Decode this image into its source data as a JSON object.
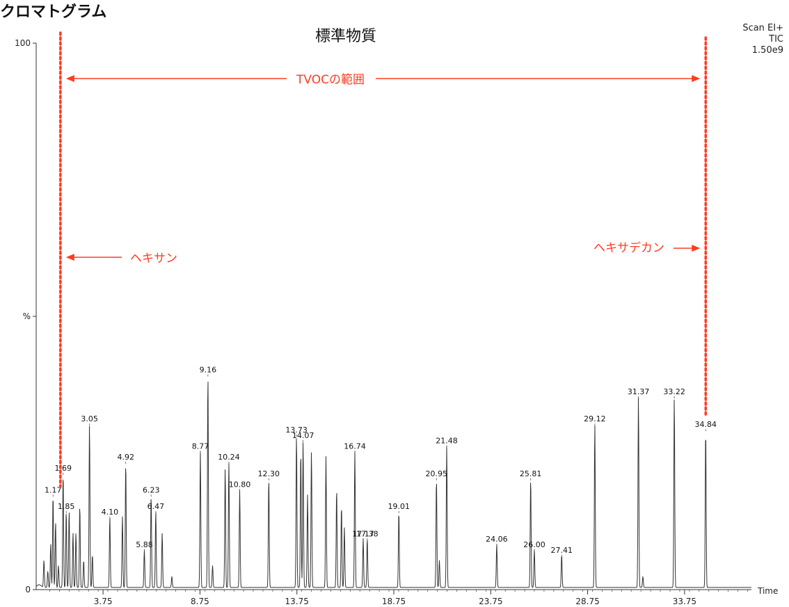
{
  "page_title": "クロマトグラム",
  "chart_data": {
    "type": "line",
    "title": "標準物質",
    "scan_info": [
      "Scan EI+",
      "TIC",
      "1.50e9"
    ],
    "ylabel": "%",
    "xlabel": "Time",
    "ylim": [
      0,
      100
    ],
    "xlim": [
      0.3,
      37.2
    ],
    "y_ticks": [
      "0",
      "%",
      "100"
    ],
    "x_ticks": [
      3.75,
      8.75,
      13.75,
      18.75,
      23.75,
      28.75,
      33.75
    ],
    "x_tick_labels": [
      "3.75",
      "8.75",
      "13.75",
      "18.75",
      "23.75",
      "28.75",
      "33.75"
    ],
    "peaks": [
      {
        "rt": 0.7,
        "height": 5
      },
      {
        "rt": 0.9,
        "height": 3
      },
      {
        "rt": 1.05,
        "height": 8
      },
      {
        "rt": 1.17,
        "height": 17,
        "label": "1.17"
      },
      {
        "rt": 1.3,
        "height": 12
      },
      {
        "rt": 1.45,
        "height": 4
      },
      {
        "rt": 1.69,
        "height": 21,
        "label": "1.69"
      },
      {
        "rt": 1.85,
        "height": 14,
        "label": "1.85"
      },
      {
        "rt": 2.0,
        "height": 14
      },
      {
        "rt": 2.2,
        "height": 10
      },
      {
        "rt": 2.35,
        "height": 10
      },
      {
        "rt": 2.55,
        "height": 15
      },
      {
        "rt": 2.75,
        "height": 5
      },
      {
        "rt": 3.05,
        "height": 30,
        "label": "3.05"
      },
      {
        "rt": 3.2,
        "height": 6
      },
      {
        "rt": 4.1,
        "height": 13,
        "label": "4.10"
      },
      {
        "rt": 4.75,
        "height": 13
      },
      {
        "rt": 4.92,
        "height": 23,
        "label": "4.92"
      },
      {
        "rt": 5.88,
        "height": 7,
        "label": "5.88"
      },
      {
        "rt": 6.23,
        "height": 17,
        "label": "6.23"
      },
      {
        "rt": 6.47,
        "height": 14,
        "label": "6.47"
      },
      {
        "rt": 6.8,
        "height": 10
      },
      {
        "rt": 7.3,
        "height": 2
      },
      {
        "rt": 8.77,
        "height": 25,
        "label": "8.77"
      },
      {
        "rt": 9.16,
        "height": 39,
        "label": "9.16"
      },
      {
        "rt": 9.4,
        "height": 4
      },
      {
        "rt": 10.05,
        "height": 22
      },
      {
        "rt": 10.24,
        "height": 23,
        "label": "10.24"
      },
      {
        "rt": 10.8,
        "height": 18,
        "label": "10.80"
      },
      {
        "rt": 12.3,
        "height": 20,
        "label": "12.30"
      },
      {
        "rt": 13.73,
        "height": 28,
        "label": "13.73"
      },
      {
        "rt": 13.95,
        "height": 25
      },
      {
        "rt": 14.07,
        "height": 27,
        "label": "14.07"
      },
      {
        "rt": 14.3,
        "height": 17
      },
      {
        "rt": 14.5,
        "height": 25
      },
      {
        "rt": 15.25,
        "height": 24
      },
      {
        "rt": 15.8,
        "height": 18
      },
      {
        "rt": 16.05,
        "height": 15
      },
      {
        "rt": 16.2,
        "height": 11
      },
      {
        "rt": 16.74,
        "height": 25,
        "label": "16.74"
      },
      {
        "rt": 17.17,
        "height": 9,
        "label": "17.17"
      },
      {
        "rt": 17.38,
        "height": 9,
        "label": "17.38"
      },
      {
        "rt": 19.01,
        "height": 14,
        "label": "19.01"
      },
      {
        "rt": 20.95,
        "height": 20,
        "label": "20.95"
      },
      {
        "rt": 21.1,
        "height": 5
      },
      {
        "rt": 21.48,
        "height": 26,
        "label": "21.48"
      },
      {
        "rt": 24.06,
        "height": 8,
        "label": "24.06"
      },
      {
        "rt": 25.81,
        "height": 20,
        "label": "25.81"
      },
      {
        "rt": 26.0,
        "height": 7,
        "label": "26.00"
      },
      {
        "rt": 27.41,
        "height": 6,
        "label": "27.41"
      },
      {
        "rt": 29.12,
        "height": 30,
        "label": "29.12"
      },
      {
        "rt": 31.37,
        "height": 35,
        "label": "31.37"
      },
      {
        "rt": 31.6,
        "height": 2
      },
      {
        "rt": 33.22,
        "height": 35,
        "label": "33.22"
      },
      {
        "rt": 34.84,
        "height": 29,
        "label": "34.84"
      }
    ],
    "annotations": {
      "tvoc_range": {
        "label": "TVOCの範囲",
        "start_rt": 1.55,
        "end_rt": 34.84
      },
      "hexane": {
        "label": "ヘキサン",
        "rt": 1.55
      },
      "hexadecane": {
        "label": "ヘキサデカン",
        "rt": 34.84
      },
      "color": "#ff3b1f"
    }
  }
}
